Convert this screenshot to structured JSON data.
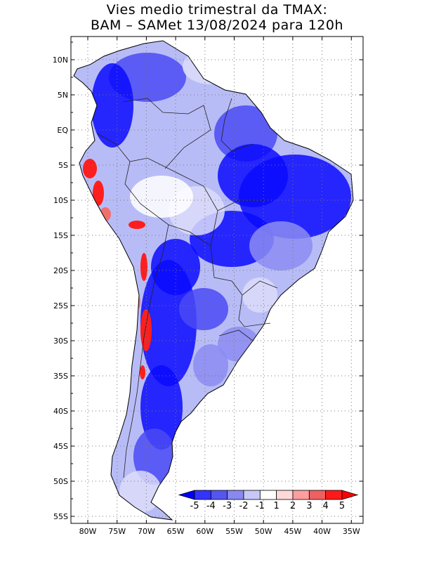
{
  "title_line1": "Vies medio trimestral da TMAX:",
  "title_line2": "BAM – SAMet 13/08/2024  para 120h",
  "lat_labels": [
    "10N",
    "5N",
    "EQ",
    "5S",
    "10S",
    "15S",
    "20S",
    "25S",
    "30S",
    "35S",
    "40S",
    "45S",
    "50S",
    "55S"
  ],
  "lon_labels": [
    "80W",
    "75W",
    "70W",
    "65W",
    "60W",
    "55W",
    "50W",
    "45W",
    "40W",
    "35W"
  ],
  "colorbar": {
    "tick_labels": [
      "-5",
      "-4",
      "-3",
      "-2",
      "-1",
      "1",
      "2",
      "3",
      "4",
      "5"
    ],
    "colors": [
      "#0000ff",
      "#3333ff",
      "#5555f0",
      "#8888f0",
      "#c8c8f8",
      "#ffffff",
      "#ffd8d8",
      "#ff9e9e",
      "#f06060",
      "#ff1a1a",
      "#ff0000"
    ]
  },
  "map_colors": {
    "land_base": "#b8bcf6",
    "deep_blue": "#0a0aff",
    "mid_blue": "#4a4af4",
    "light_blue": "#8c8cf2",
    "pale": "#dcdcfa",
    "white": "#ffffff",
    "red": "#ff1e1e",
    "pink": "#f07070"
  }
}
